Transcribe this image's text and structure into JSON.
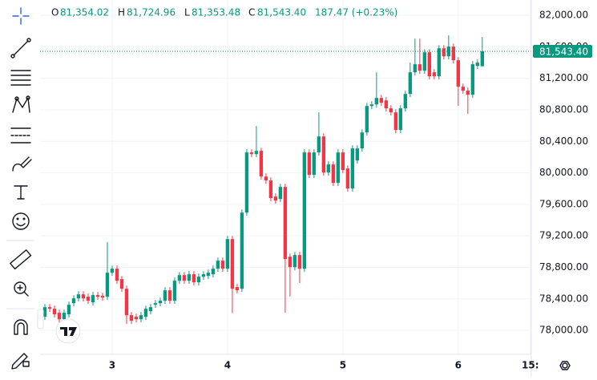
{
  "chart_data": {
    "type": "candlestick",
    "legend_header": {
      "open": {
        "label": "O",
        "value": "81,354.02"
      },
      "high": {
        "label": "H",
        "value": "81,724.96"
      },
      "low": {
        "label": "L",
        "value": "81,353.48"
      },
      "close": {
        "label": "C",
        "value": "81,543.40"
      },
      "change": "187.47 (+0.23%)"
    },
    "x": [
      -14,
      -13,
      -12,
      -11,
      -10,
      -9,
      -8,
      -7,
      -6,
      -5,
      -4,
      -3,
      -2,
      -1,
      0,
      1,
      2,
      3,
      4,
      5,
      6,
      7,
      8,
      9,
      10,
      11,
      12,
      13,
      14,
      15,
      16,
      17,
      18,
      19,
      20,
      21,
      22,
      23,
      24,
      25,
      26,
      27,
      28,
      29,
      30,
      31,
      32,
      33,
      34,
      35,
      36,
      37,
      38,
      39,
      40,
      41,
      42,
      43,
      44,
      45,
      46,
      47,
      48,
      49,
      50,
      51,
      52,
      53,
      54,
      55,
      56,
      57,
      58,
      59,
      60,
      61,
      62,
      63,
      64,
      65,
      66,
      67,
      68,
      69,
      70,
      71,
      72,
      73,
      74,
      75,
      76,
      77
    ],
    "open": [
      78172,
      78294,
      78274,
      78223,
      78141,
      78203,
      78345,
      78406,
      78457,
      78427,
      78355,
      78447,
      78437,
      78427,
      78732,
      78783,
      78650,
      78528,
      78192,
      78172,
      78141,
      78172,
      78243,
      78325,
      78345,
      78376,
      78508,
      78376,
      78630,
      78701,
      78630,
      78712,
      78610,
      78681,
      78691,
      78712,
      78783,
      78885,
      78783,
      79159,
      78549,
      78528,
      79495,
      80259,
      80238,
      80279,
      79953,
      79903,
      79699,
      79668,
      79821,
      78935,
      78803,
      78956,
      78783,
      80259,
      79974,
      80259,
      80462,
      80004,
      80106,
      79872,
      80259,
      80055,
      79801,
      80157,
      80310,
      80513,
      80849,
      80869,
      80951,
      80920,
      80819,
      80768,
      80544,
      80819,
      81002,
      81277,
      81379,
      81297,
      81531,
      81277,
      81226,
      81582,
      81480,
      81603,
      81430,
      81094,
      81043,
      80992,
      81358,
      81354.02
    ],
    "high": [
      78334,
      78334,
      78314,
      78263,
      78263,
      78365,
      78446,
      78497,
      78497,
      78467,
      78487,
      78487,
      78477,
      79119,
      78823,
      78823,
      78690,
      78568,
      78232,
      78212,
      78232,
      78314,
      78334,
      78385,
      78416,
      78548,
      78548,
      78670,
      78741,
      78741,
      78752,
      78752,
      78721,
      78752,
      78772,
      78823,
      78925,
      78925,
      79199,
      79199,
      78589,
      79535,
      80299,
      80299,
      80595,
      80319,
      79993,
      79943,
      79739,
      79861,
      79861,
      78975,
      78996,
      78996,
      80299,
      80299,
      80299,
      80768,
      80502,
      80146,
      80146,
      80299,
      80299,
      80095,
      80350,
      80350,
      80553,
      80889,
      80909,
      81277,
      80991,
      80960,
      80859,
      80808,
      80859,
      81042,
      81400,
      81704,
      81704,
      81571,
      81571,
      81317,
      81622,
      81622,
      81745,
      81643,
      81470,
      81134,
      81083,
      81419,
      81439,
      81724.96
    ],
    "low": [
      78132,
      78234,
      78163,
      78101,
      78101,
      78163,
      78305,
      78366,
      78366,
      78336,
      78315,
      78387,
      78376,
      78387,
      78692,
      78590,
      78488,
      78081,
      78081,
      78101,
      78101,
      78132,
      78203,
      78285,
      78305,
      78336,
      78336,
      78336,
      78590,
      78590,
      78590,
      78570,
      78570,
      78641,
      78651,
      78672,
      78743,
      78743,
      78743,
      78220,
      78468,
      78488,
      79455,
      80198,
      80198,
      79913,
      79863,
      79639,
      79608,
      79628,
      78223,
      78430,
      78763,
      78600,
      78743,
      79934,
      79934,
      80219,
      79964,
      79964,
      79832,
      79832,
      79995,
      79761,
      79761,
      80117,
      80270,
      80473,
      80809,
      80829,
      80850,
      80779,
      80728,
      80504,
      80504,
      80779,
      80962,
      81237,
      81257,
      81257,
      81186,
      81186,
      81186,
      81440,
      81440,
      81390,
      80850,
      81003,
      80750,
      80952,
      81318,
      81353.48
    ],
    "close": [
      78294,
      78274,
      78203,
      78141,
      78223,
      78325,
      78406,
      78457,
      78406,
      78376,
      78447,
      78427,
      78416,
      78732,
      78783,
      78630,
      78528,
      78192,
      78121,
      78141,
      78192,
      78274,
      78294,
      78345,
      78376,
      78508,
      78376,
      78630,
      78701,
      78630,
      78712,
      78610,
      78681,
      78712,
      78732,
      78783,
      78885,
      78783,
      79159,
      78528,
      78508,
      79495,
      80259,
      80238,
      80279,
      79953,
      79903,
      79679,
      79648,
      79821,
      78905,
      78803,
      78956,
      78783,
      80259,
      79974,
      80259,
      80462,
      80004,
      80106,
      79872,
      80259,
      80035,
      79801,
      80310,
      80310,
      80513,
      80849,
      80869,
      80951,
      80890,
      80819,
      80768,
      80544,
      80819,
      81002,
      81277,
      81379,
      81297,
      81531,
      81226,
      81226,
      81582,
      81480,
      81603,
      81430,
      81094,
      81043,
      80992,
      81379,
      81399,
      81543.4
    ],
    "up_color": "#089981",
    "down_color": "#f23645",
    "xlim": [
      -14,
      87.2
    ],
    "xticks": [
      {
        "value": 0,
        "label": "3"
      },
      {
        "value": 24,
        "label": "4"
      },
      {
        "value": 48,
        "label": "5"
      },
      {
        "value": 72,
        "label": "6"
      },
      {
        "value": 87,
        "label": "15:"
      }
    ],
    "ylim": [
      77695,
      82195
    ],
    "yticks": [
      {
        "value": 78000,
        "label": "78,000.00"
      },
      {
        "value": 78400,
        "label": "78,400.00"
      },
      {
        "value": 78800,
        "label": "78,800.00"
      },
      {
        "value": 79200,
        "label": "79,200.00"
      },
      {
        "value": 79600,
        "label": "79,600.00"
      },
      {
        "value": 80000,
        "label": "80,000.00"
      },
      {
        "value": 80400,
        "label": "80,400.00"
      },
      {
        "value": 80800,
        "label": "80,800.00"
      },
      {
        "value": 81200,
        "label": "81,200.00"
      },
      {
        "value": 81600,
        "label": "81,600.00"
      },
      {
        "value": 82000,
        "label": "82,000.00"
      }
    ],
    "last_price": {
      "value": 81543.4,
      "label": "81,543.40"
    },
    "grid": true
  }
}
